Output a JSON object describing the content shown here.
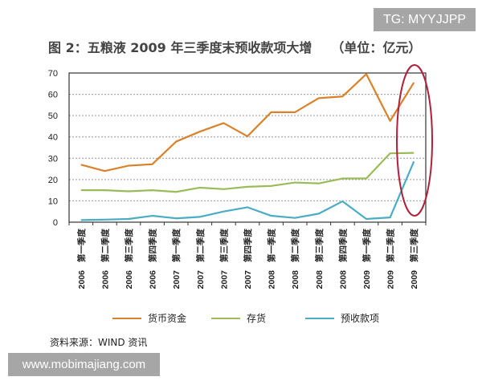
{
  "watermark_top": "TG: MYYJJPP",
  "watermark_bottom": "www.mobimajiang.com",
  "source": "资料来源：WIND 资讯",
  "chart_data": {
    "type": "line",
    "title": "图 2：五粮液 2009 年三季度末预收款项大增　　（单位：亿元）",
    "categories": [
      "2006 第一季度",
      "2006 第二季度",
      "2006 第三季度",
      "2006 第四季度",
      "2007 第一季度",
      "2007 第二季度",
      "2007 第三季度",
      "2007 第四季度",
      "2008 第一季度",
      "2008 第二季度",
      "2008 第三季度",
      "2008 第四季度",
      "2009 第一季度",
      "2009 第二季度",
      "2009 第三季度"
    ],
    "category_years": [
      "2006",
      "2006",
      "2006",
      "2006",
      "2007",
      "2007",
      "2007",
      "2007",
      "2008",
      "2008",
      "2008",
      "2008",
      "2009",
      "2009",
      "2009"
    ],
    "category_quarters": [
      "第一季度",
      "第二季度",
      "第三季度",
      "第四季度",
      "第一季度",
      "第二季度",
      "第三季度",
      "第四季度",
      "第一季度",
      "第二季度",
      "第三季度",
      "第四季度",
      "第一季度",
      "第二季度",
      "第三季度"
    ],
    "series": [
      {
        "name": "货币资金",
        "color": "#d9822b",
        "values": [
          27,
          24,
          26.5,
          27.2,
          37.8,
          42.5,
          46.5,
          40.3,
          51.6,
          51.6,
          58.2,
          59,
          69.5,
          47.5,
          65.5
        ]
      },
      {
        "name": "存货",
        "color": "#9bbb59",
        "values": [
          15,
          15,
          14.5,
          15,
          14.2,
          16.2,
          15.5,
          16.6,
          17,
          18.6,
          18.2,
          20.5,
          20.5,
          32.3,
          32.5
        ]
      },
      {
        "name": "预收款项",
        "color": "#4bacc6",
        "values": [
          1,
          1.2,
          1.5,
          3,
          1.8,
          2.5,
          5,
          7,
          3,
          2,
          4,
          9.8,
          1.5,
          2.2,
          28.5
        ]
      }
    ],
    "ylim": [
      0,
      70
    ],
    "yticks": [
      "0",
      "10",
      "20",
      "30",
      "40",
      "50",
      "60",
      "70"
    ],
    "grid": true,
    "legend": "bottom",
    "highlight_color": "#b0203a"
  }
}
